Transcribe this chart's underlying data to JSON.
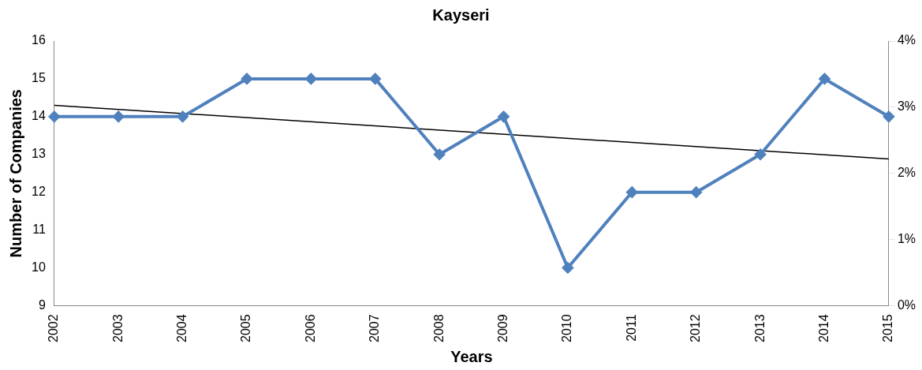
{
  "chart_data": {
    "type": "line",
    "title": "Kayseri",
    "xlabel": "Years",
    "ylabel": "Number of Companies",
    "categories": [
      "2002",
      "2003",
      "2004",
      "2005",
      "2006",
      "2007",
      "2008",
      "2009",
      "2010",
      "2011",
      "2012",
      "2013",
      "2014",
      "2015"
    ],
    "series": [
      {
        "color": "#4f81bd",
        "values": [
          14,
          14,
          14,
          15,
          15,
          15,
          13,
          14,
          10,
          12,
          12,
          13,
          15,
          14
        ],
        "marker": "diamond"
      },
      {
        "type": "line",
        "color": "#000000",
        "values": [
          14.3,
          null,
          null,
          null,
          null,
          null,
          null,
          null,
          null,
          null,
          null,
          null,
          null,
          12.88
        ],
        "marker": "none"
      }
    ],
    "ylim": [
      9,
      16
    ],
    "yticks": [
      9,
      10,
      11,
      12,
      13,
      14,
      15,
      16
    ],
    "y2lim": [
      0,
      4
    ],
    "y2ticks": [
      {
        "value": 0,
        "label": "0%"
      },
      {
        "value": 1,
        "label": "1%"
      },
      {
        "value": 2,
        "label": "2%"
      },
      {
        "value": 3,
        "label": "3%"
      },
      {
        "value": 4,
        "label": "4%"
      }
    ],
    "grid": false,
    "legend": false
  }
}
